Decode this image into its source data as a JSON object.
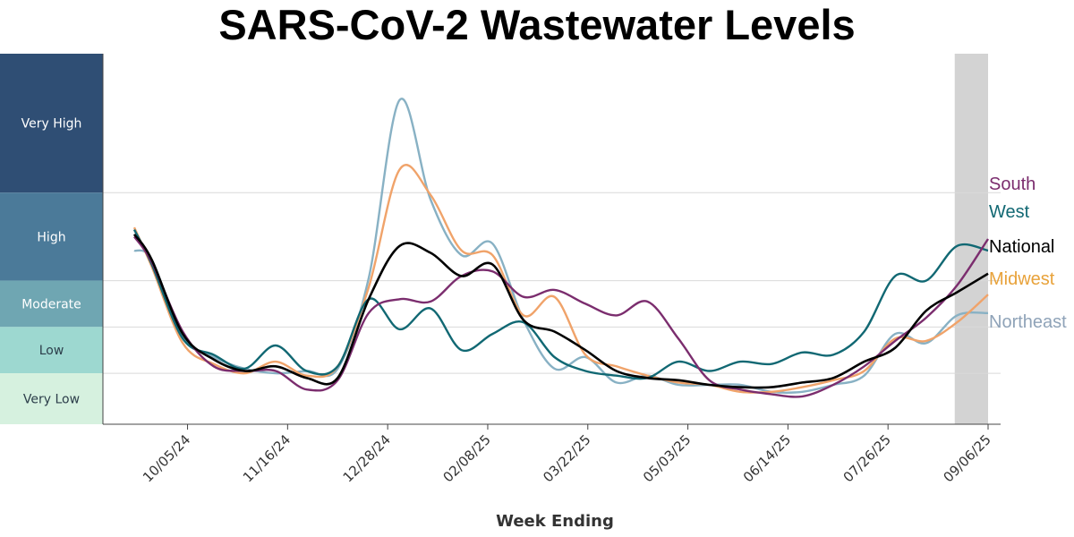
{
  "title": "SARS-CoV-2 Wastewater Levels",
  "chart_data": {
    "type": "line",
    "xlabel": "Week Ending",
    "x_tick_labels": [
      "10/05/24",
      "11/16/24",
      "12/28/24",
      "02/08/25",
      "03/22/25",
      "05/03/25",
      "06/14/25",
      "07/26/25",
      "09/06/25"
    ],
    "x_start": "2024-09-07",
    "x_end": "2025-09-06",
    "ylim": [
      0,
      16
    ],
    "grid": true,
    "shaded_recent_period": [
      "2025-08-23",
      "2025-09-06"
    ],
    "levels": [
      {
        "label": "Very High",
        "range": [
          10,
          16
        ],
        "color": "#2f4e74"
      },
      {
        "label": "High",
        "range": [
          6.2,
          10
        ],
        "color": "#4b7a99"
      },
      {
        "label": "Moderate",
        "range": [
          4.2,
          6.2
        ],
        "color": "#6fa6b2"
      },
      {
        "label": "Low",
        "range": [
          2.2,
          4.2
        ],
        "color": "#9dd8d0"
      },
      {
        "label": "Very Low",
        "range": [
          0,
          2.2
        ],
        "color": "#d6f1df"
      }
    ],
    "series": [
      {
        "name": "South",
        "color": "#7b2d6e",
        "values": [
          8.1,
          7.0,
          4.0,
          2.5,
          2.3,
          2.3,
          1.5,
          1.9,
          4.8,
          5.4,
          5.3,
          6.4,
          6.6,
          5.5,
          5.8,
          5.2,
          4.7,
          5.3,
          3.7,
          1.9,
          1.5,
          1.3,
          1.2,
          1.7,
          2.5,
          3.6,
          4.6,
          6.0,
          8.0
        ]
      },
      {
        "name": "West",
        "color": "#116873",
        "values": [
          8.4,
          6.9,
          3.7,
          3.0,
          2.4,
          3.4,
          2.3,
          2.5,
          5.4,
          4.1,
          5.0,
          3.2,
          3.9,
          4.4,
          2.9,
          2.3,
          2.1,
          2.0,
          2.7,
          2.3,
          2.7,
          2.6,
          3.1,
          3.0,
          4.0,
          6.4,
          6.2,
          7.7,
          7.5
        ]
      },
      {
        "name": "National",
        "color": "#000000",
        "values": [
          8.2,
          7.1,
          3.9,
          2.8,
          2.3,
          2.5,
          2.0,
          2.0,
          5.4,
          7.7,
          7.4,
          6.4,
          6.9,
          4.5,
          4.0,
          3.2,
          2.3,
          2.0,
          1.9,
          1.7,
          1.6,
          1.6,
          1.8,
          2.0,
          2.7,
          3.3,
          4.9,
          5.7,
          6.5
        ]
      },
      {
        "name": "Midwest",
        "color": "#f0a36a",
        "values": [
          8.5,
          6.8,
          3.5,
          2.6,
          2.2,
          2.7,
          2.1,
          2.5,
          5.9,
          11.0,
          9.9,
          7.5,
          7.3,
          4.7,
          5.5,
          3.0,
          2.5,
          2.1,
          1.8,
          1.7,
          1.4,
          1.4,
          1.6,
          1.9,
          2.3,
          3.7,
          3.6,
          4.4,
          5.6
        ]
      },
      {
        "name": "Northeast",
        "color": "#88b1c4",
        "values": [
          7.5,
          7.1,
          3.8,
          2.9,
          2.4,
          2.2,
          2.3,
          2.4,
          6.3,
          14.0,
          9.7,
          7.3,
          7.8,
          4.5,
          2.4,
          2.9,
          1.8,
          2.1,
          1.7,
          1.7,
          1.7,
          1.4,
          1.4,
          1.7,
          2.1,
          3.9,
          3.5,
          4.7,
          4.8
        ]
      }
    ]
  }
}
